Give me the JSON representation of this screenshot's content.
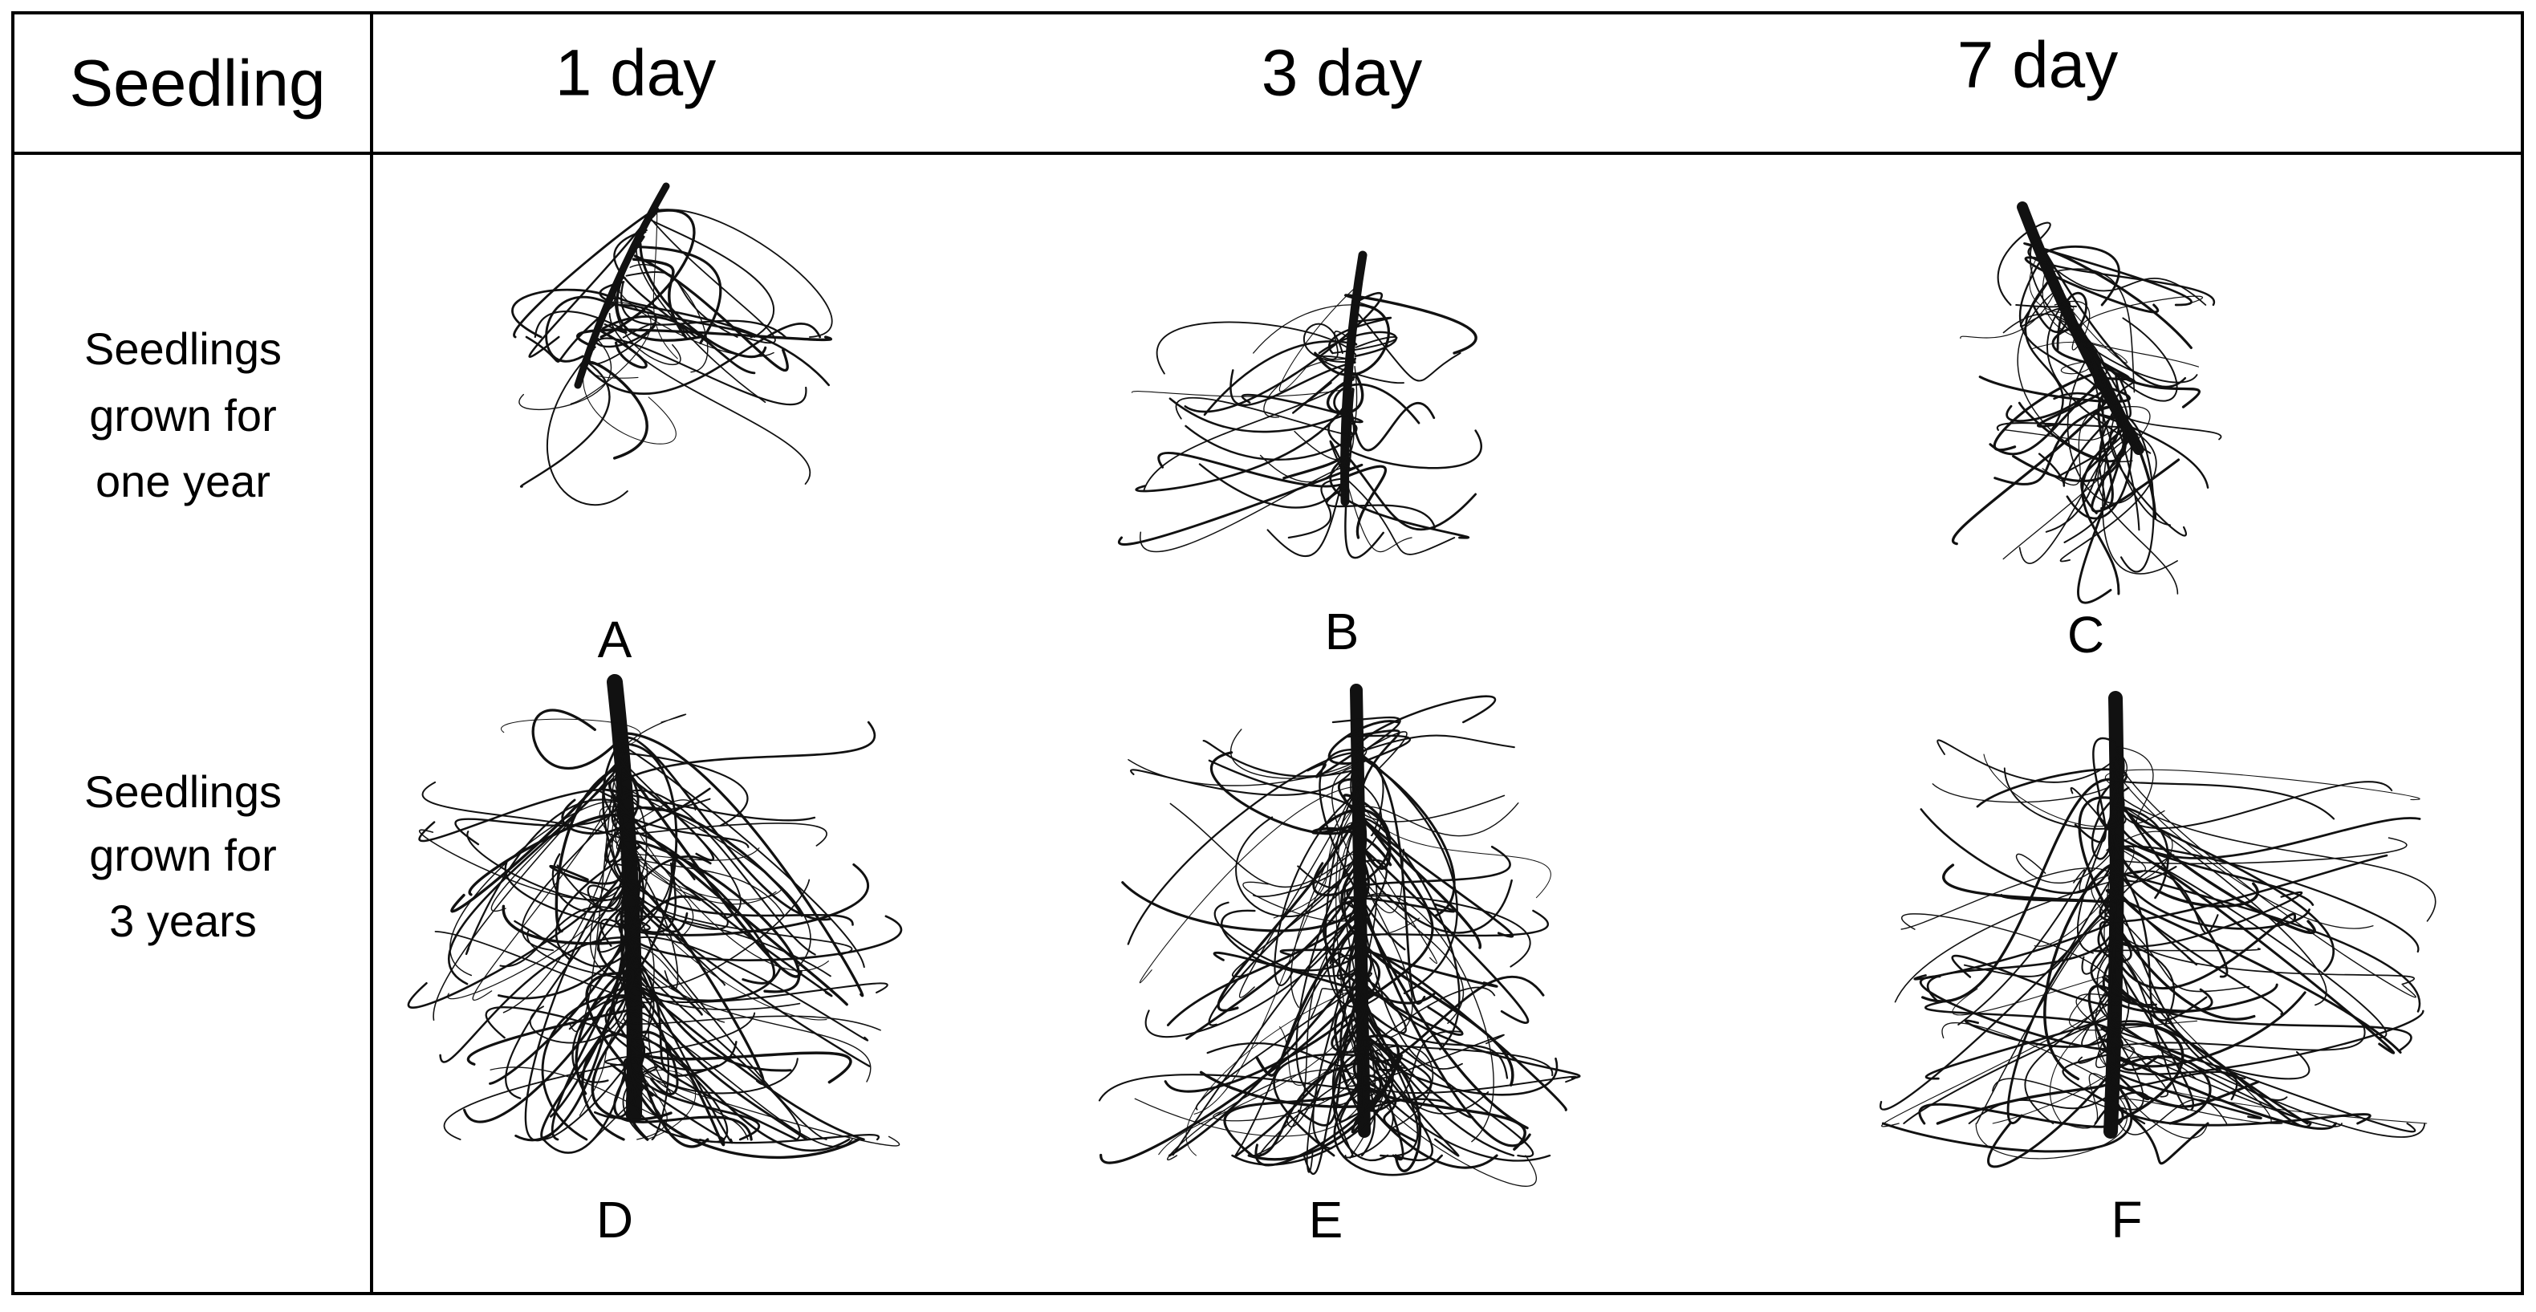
{
  "header": {
    "cells": [
      "Seedling",
      "1 day",
      "3 day",
      "7 day"
    ]
  },
  "rows": [
    {
      "label": [
        "Seedlings",
        "grown for",
        "one year"
      ],
      "panels": [
        "A",
        "B",
        "C"
      ]
    },
    {
      "label": [
        "Seedlings",
        "grown for",
        "3 years"
      ],
      "panels": [
        "D",
        "E",
        "F"
      ]
    }
  ]
}
